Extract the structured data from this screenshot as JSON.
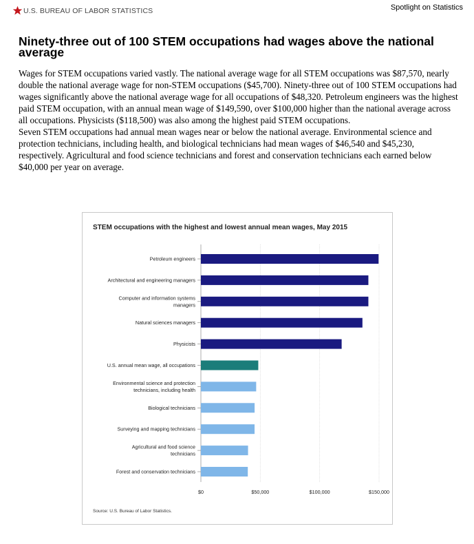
{
  "header": {
    "agency": "U.S. BUREAU OF LABOR STATISTICS",
    "link": "Spotlight on Statistics"
  },
  "article": {
    "headline": "Ninety-three out of 100 STEM occupations had wages above the national average",
    "paragraph1": "Wages for STEM occupations varied vastly. The national average wage for all STEM occupations was $87,570, nearly double the national average wage for non-STEM occupations ($45,700). Ninety-three out of 100 STEM occupations had wages significantly above the national average wage for all occupations of $48,320. Petroleum engineers was the highest paid STEM occupation, with an annual mean wage of $149,590, over $100,000 higher than the national average across all occupations. Physicists ($118,500) was also among the highest paid STEM occupations.",
    "paragraph2": "Seven STEM occupations had annual mean wages near or below the national average. Environmental science and protection technicians, including health, and biological technicians had mean wages of $46,540 and $45,230, respectively. Agricultural and food science technicians and forest and conservation technicians each earned below $40,000 per year on average."
  },
  "colors": {
    "high": "#1a1a80",
    "national": "#1b7d7a",
    "low": "#7fb6e8",
    "star": "#c4161c"
  },
  "chart_data": {
    "type": "bar",
    "orientation": "horizontal",
    "title": "STEM occupations with the highest and lowest annual mean wages, May 2015",
    "source": "Source: U.S. Bureau of Labor Statistics.",
    "xlim": [
      0,
      150000
    ],
    "x_ticks": [
      0,
      50000,
      100000,
      150000
    ],
    "x_tick_labels": [
      "$0",
      "$50,000",
      "$100,000",
      "$150,000"
    ],
    "grid": true,
    "categories": [
      [
        "Petroleum engineers"
      ],
      [
        "Architectural and engineering managers"
      ],
      [
        "Computer and information systems",
        "managers"
      ],
      [
        "Natural sciences managers"
      ],
      [
        "Physicists"
      ],
      [
        "U.S. annual mean wage, all occupations"
      ],
      [
        "Environmental science and protection",
        "technicians, including health"
      ],
      [
        "Biological technicians"
      ],
      [
        "Surveying and mapping technicians"
      ],
      [
        "Agricultural and food science",
        "technicians"
      ],
      [
        "Forest and conservation technicians"
      ]
    ],
    "values": [
      149590,
      141000,
      141000,
      136000,
      118500,
      48320,
      46540,
      45230,
      45200,
      39700,
      39500
    ],
    "groups": [
      "high",
      "high",
      "high",
      "high",
      "high",
      "national",
      "low",
      "low",
      "low",
      "low",
      "low"
    ]
  }
}
